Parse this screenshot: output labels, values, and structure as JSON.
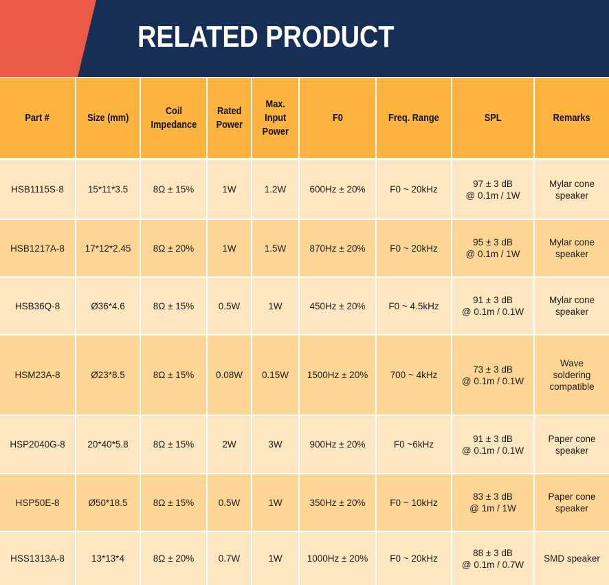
{
  "banner": {
    "title": "RELATED PRODUCT",
    "colors": {
      "navy": "#172f55",
      "coral": "#ea5a44"
    }
  },
  "table": {
    "colors": {
      "header": "#fdb33f",
      "row_light": "#fee6c0",
      "row_dark": "#fdd595",
      "gridline": "#ffffff"
    },
    "columns": [
      "Part #",
      "Size (mm)",
      "Coil\nImpedance",
      "Rated\nPower",
      "Max.\nInput\nPower",
      "F0",
      "Freq. Range",
      "SPL",
      "Remarks"
    ],
    "rows": [
      [
        "HSB1115S-8",
        "15*11*3.5",
        "8Ω ± 15%",
        "1W",
        "1.2W",
        "600Hz ± 20%",
        "F0 ~ 20kHz",
        "97 ± 3 dB\n@ 0.1m / 1W",
        "Mylar cone\nspeaker"
      ],
      [
        "HSB1217A-8",
        "17*12*2.45",
        "8Ω ± 20%",
        "1W",
        "1.5W",
        "870Hz ± 20%",
        "F0 ~ 20kHz",
        "95 ± 3 dB\n@ 0.1m / 1W",
        "Mylar cone\nspeaker"
      ],
      [
        "HSB36Q-8",
        "Ø36*4.6",
        "8Ω ± 15%",
        "0.5W",
        "1W",
        "450Hz ± 20%",
        "F0 ~ 4.5kHz",
        "91 ± 3 dB\n@ 0.1m / 0.1W",
        "Mylar cone\nspeaker"
      ],
      [
        "HSM23A-8",
        "Ø23*8.5",
        "8Ω ± 15%",
        "0.08W",
        "0.15W",
        "1500Hz ± 20%",
        "700 ~ 4kHz",
        "73 ± 3 dB\n@ 0.1m / 0.1W",
        "Wave\nsoldering\ncompatible"
      ],
      [
        "HSP2040G-8",
        "20*40*5.8",
        "8Ω ± 15%",
        "2W",
        "3W",
        "900Hz ± 20%",
        "F0 ~6kHz",
        "91 ± 3 dB\n@ 0.1m / 0.1W",
        "Paper cone\nspeaker"
      ],
      [
        "HSP50E-8",
        "Ø50*18.5",
        "8Ω ± 15%",
        "0.5W",
        "1W",
        "350Hz ± 20%",
        "F0 ~ 10kHz",
        "83 ± 3 dB\n@ 1m / 1W",
        "Paper cone\nspeaker"
      ],
      [
        "HSS1313A-8",
        "13*13*4",
        "8Ω ± 20%",
        "0.7W",
        "1W",
        "1000Hz ± 20%",
        "F0 ~ 20kHz",
        "88 ± 3 dB\n@ 0.1m / 0.7W",
        "SMD speaker"
      ]
    ]
  }
}
